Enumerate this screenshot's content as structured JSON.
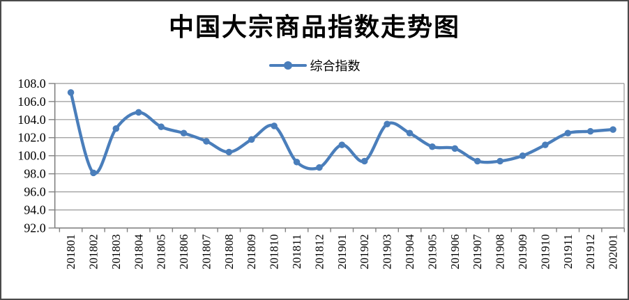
{
  "chart_data": {
    "type": "line",
    "title": "中国大宗商品指数走势图",
    "legend": "综合指数",
    "series": [
      {
        "name": "综合指数",
        "values": [
          107.0,
          98.1,
          103.0,
          104.8,
          103.2,
          102.5,
          101.6,
          100.4,
          101.8,
          103.3,
          99.3,
          98.7,
          101.2,
          99.4,
          103.5,
          102.5,
          101.0,
          100.8,
          99.4,
          99.4,
          100.0,
          101.2,
          102.5,
          102.7,
          102.9
        ]
      }
    ],
    "categories": [
      "201801",
      "201802",
      "201803",
      "201804",
      "201805",
      "201806",
      "201807",
      "201808",
      "201809",
      "201810",
      "201811",
      "201812",
      "201901",
      "201902",
      "201903",
      "201904",
      "201905",
      "201906",
      "201907",
      "201908",
      "201909",
      "201910",
      "201911",
      "201912",
      "202001"
    ],
    "xlabel": "",
    "ylabel": "",
    "ylim": [
      92.0,
      108.0
    ],
    "ytick_step": 2.0,
    "yticks": [
      "108.0",
      "106.0",
      "104.0",
      "102.0",
      "100.0",
      "98.0",
      "96.0",
      "94.0",
      "92.0"
    ],
    "grid": true,
    "line_smoothing": true,
    "legend_position": "top-center",
    "colors": {
      "line": "#4a7ebb",
      "marker": "#4a7ebb",
      "grid": "#999999",
      "axis": "#808080",
      "text": "#000000",
      "background": "#ffffff",
      "frame_border": "#4a4a4a"
    }
  }
}
